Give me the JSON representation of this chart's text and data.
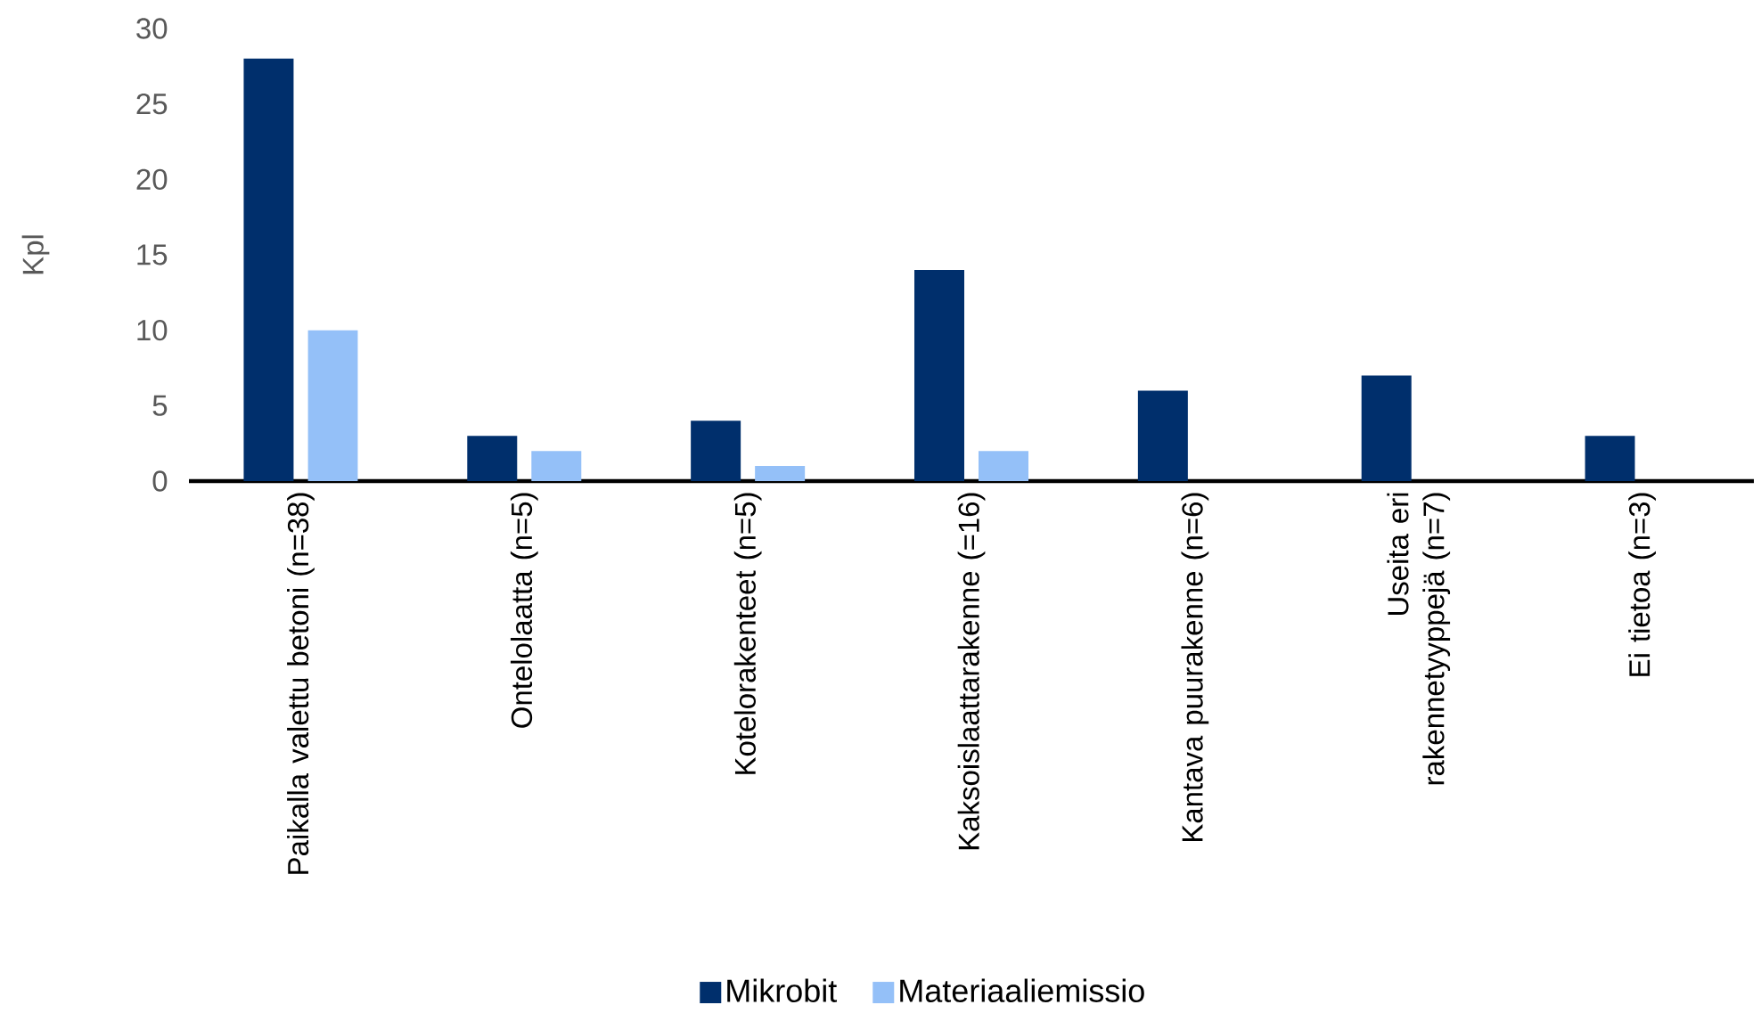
{
  "chart_data": {
    "type": "bar",
    "ylabel": "Kpl",
    "categories": [
      "Paikalla valettu betoni (n=38)",
      "Ontelolaatta (n=5)",
      "Kotelorakenteet (n=5)",
      "Kaksoislaattarakenne (=16)",
      "Kantava puurakenne (n=6)",
      "Useita eri rakennetyyppejä (n=7)",
      "Ei tietoa (n=3)"
    ],
    "series": [
      {
        "name": "Mikrobit",
        "color": "#002f6c",
        "values": [
          28,
          3,
          4,
          14,
          6,
          7,
          3
        ]
      },
      {
        "name": "Materiaaliemissio",
        "color": "#94c0f8",
        "values": [
          10,
          2,
          1,
          2,
          0,
          0,
          0
        ]
      }
    ],
    "ylim": [
      0,
      30
    ],
    "yticks": [
      0,
      5,
      10,
      15,
      20,
      25,
      30
    ],
    "legend": "bottom"
  }
}
